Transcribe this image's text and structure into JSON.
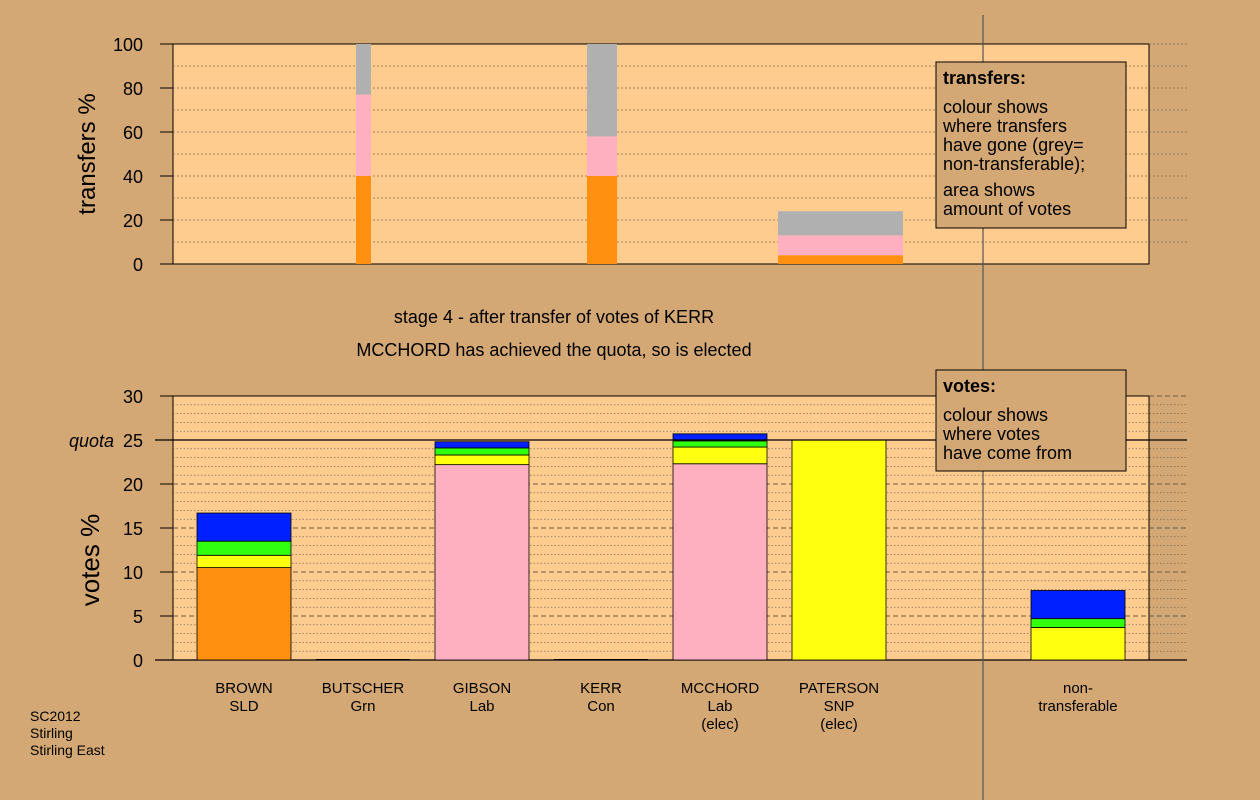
{
  "chart_data": [
    {
      "type": "bar",
      "stacked": true,
      "panel": "transfers",
      "ylabel": "transfers %",
      "ylim": [
        0,
        100
      ],
      "yticks": [
        0,
        20,
        40,
        60,
        80,
        100
      ],
      "grid": true,
      "bars": [
        {
          "segments": [
            {
              "color": "#ff9010",
              "value": 40
            },
            {
              "color": "#ffb0c0",
              "value": 37
            },
            {
              "color": "#b0b0b0",
              "value": 23
            }
          ]
        },
        {
          "segments": [
            {
              "color": "#ff9010",
              "value": 40
            },
            {
              "color": "#ffb0c0",
              "value": 18
            },
            {
              "color": "#b0b0b0",
              "value": 42
            }
          ]
        },
        {
          "segments": [
            {
              "color": "#ff9010",
              "value": 4
            },
            {
              "color": "#ffb0c0",
              "value": 9
            },
            {
              "color": "#b0b0b0",
              "value": 11
            }
          ]
        }
      ],
      "legend": {
        "title": "transfers:",
        "lines": [
          "colour shows",
          "where transfers",
          "have gone (grey=",
          "non-transferable);",
          "area shows",
          "amount of votes"
        ]
      }
    },
    {
      "type": "bar",
      "stacked": true,
      "panel": "votes",
      "ylabel": "votes %",
      "ylim": [
        0,
        30
      ],
      "yticks": [
        0,
        5,
        10,
        15,
        20,
        25,
        30
      ],
      "quota": 25,
      "quota_label": "quota",
      "grid": true,
      "categories": [
        {
          "lines": [
            "BROWN",
            "SLD"
          ]
        },
        {
          "lines": [
            "BUTSCHER",
            "Grn"
          ]
        },
        {
          "lines": [
            "GIBSON",
            "Lab"
          ]
        },
        {
          "lines": [
            "KERR",
            "Con"
          ]
        },
        {
          "lines": [
            "MCCHORD",
            "Lab",
            "(elec)"
          ]
        },
        {
          "lines": [
            "PATERSON",
            "SNP",
            "(elec)"
          ]
        },
        {
          "lines": [
            "non-",
            "transferable"
          ]
        }
      ],
      "bars": [
        {
          "segments": [
            {
              "color": "#ff9010",
              "value": 10.5
            },
            {
              "color": "#ffff10",
              "value": 1.4
            },
            {
              "color": "#30ff10",
              "value": 1.6
            },
            {
              "color": "#0020ff",
              "value": 3.2
            }
          ]
        },
        {
          "segments": []
        },
        {
          "segments": [
            {
              "color": "#ffb0c0",
              "value": 22.2
            },
            {
              "color": "#ffff10",
              "value": 1.1
            },
            {
              "color": "#30ff10",
              "value": 0.8
            },
            {
              "color": "#0020ff",
              "value": 0.7
            }
          ]
        },
        {
          "segments": []
        },
        {
          "segments": [
            {
              "color": "#ffb0c0",
              "value": 22.3
            },
            {
              "color": "#ffff10",
              "value": 1.9
            },
            {
              "color": "#30ff10",
              "value": 0.7
            },
            {
              "color": "#0020ff",
              "value": 0.8
            }
          ]
        },
        {
          "segments": [
            {
              "color": "#ffff10",
              "value": 25
            }
          ]
        },
        {
          "segments": [
            {
              "color": "#ffff10",
              "value": 3.7
            },
            {
              "color": "#30ff10",
              "value": 1.0
            },
            {
              "color": "#0020ff",
              "value": 3.2
            }
          ]
        }
      ],
      "legend": {
        "title": "votes:",
        "lines": [
          "colour shows",
          "where votes",
          "have come from"
        ]
      }
    }
  ],
  "captions": {
    "stage": "stage 4 - after transfer of votes of KERR",
    "elected": "MCCHORD has achieved the quota, so is elected"
  },
  "footer": {
    "lines": [
      "SC2012",
      "Stirling",
      "Stirling East"
    ]
  },
  "colors": {
    "background": "#d4a874",
    "plot": "#ffcc90"
  }
}
